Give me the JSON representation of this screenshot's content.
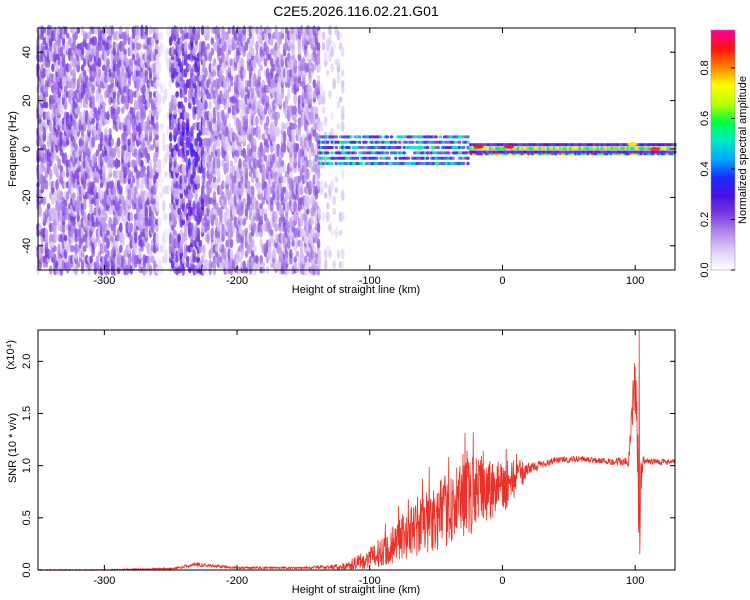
{
  "title": "C2E5.2026.116.02.21.G01",
  "colors": {
    "snr_line": "#e8322a",
    "spectro_bg": "#ffffff",
    "axis": "#000000",
    "colormap": [
      "#ffffff",
      "#e0d0f8",
      "#b48ae8",
      "#7a3ee0",
      "#4a10e0",
      "#1a2cff",
      "#00a8ff",
      "#00e8c8",
      "#00ff40",
      "#b8ff00",
      "#ffff00",
      "#ff8000",
      "#ff1010",
      "#ff00a0"
    ]
  },
  "chart_data": [
    {
      "type": "heatmap",
      "name": "spectrogram",
      "xlabel": "Height of straight line (km)",
      "ylabel": "Frequency (Hz)",
      "xlim": [
        -350,
        130
      ],
      "ylim": [
        -50,
        50
      ],
      "x_ticks": [
        -300,
        -200,
        -100,
        0,
        100
      ],
      "y_ticks": [
        -40,
        -20,
        0,
        20,
        40
      ],
      "colorbar": {
        "label": "Normalized spectral amplitude",
        "range": [
          0.0,
          0.95
        ],
        "ticks": [
          0.0,
          0.2,
          0.4,
          0.6,
          0.8
        ]
      },
      "regions": [
        {
          "x": [
            -350,
            -260
          ],
          "freq_spread": 50,
          "amplitude": 0.18,
          "density": 0.62
        },
        {
          "x": [
            -260,
            -250
          ],
          "freq_spread": 50,
          "amplitude": 0.06,
          "density": 0.25
        },
        {
          "x": [
            -250,
            -225
          ],
          "freq_spread": 50,
          "amplitude": 0.22,
          "density": 0.6,
          "core_amplitude": 0.3,
          "core_spread": 8
        },
        {
          "x": [
            -225,
            -138
          ],
          "freq_spread": 50,
          "amplitude": 0.16,
          "density": 0.58
        },
        {
          "x": [
            -138,
            -120
          ],
          "freq_spread": 50,
          "amplitude": 0.08,
          "density": 0.18
        },
        {
          "x": [
            -138,
            -25
          ],
          "freq_spread": 6,
          "amplitude": 0.45,
          "density": 0.9
        },
        {
          "x": [
            -25,
            130
          ],
          "freq_spread": 2,
          "amplitude": 0.65,
          "density": 1.0
        }
      ],
      "hot_spots": [
        {
          "x": -18,
          "f": 1,
          "amplitude": 0.88
        },
        {
          "x": 5,
          "f": 1,
          "amplitude": 0.9
        },
        {
          "x": 98,
          "f": 2,
          "amplitude": 0.75
        },
        {
          "x": 115,
          "f": 0,
          "amplitude": 0.85
        }
      ]
    },
    {
      "type": "line",
      "name": "snr",
      "xlabel": "Height of straight line (km)",
      "ylabel": "SNR (10 * v/v)",
      "y_multiplier": "(x10⁴)",
      "xlim": [
        -350,
        130
      ],
      "ylim": [
        0,
        2.3
      ],
      "x_ticks": [
        -300,
        -200,
        -100,
        0,
        100
      ],
      "y_ticks": [
        0.0,
        0.5,
        1.0,
        1.5,
        2.0
      ],
      "y_tick_labels": [
        "0.0",
        "0.5",
        "1.0",
        "1.5",
        "2.0"
      ],
      "series": [
        {
          "x": [
            -350,
            -300,
            -250,
            -230,
            -200,
            -150,
            -120,
            -100,
            -80,
            -60,
            -40,
            -20,
            -5,
            10,
            20,
            40,
            60,
            80,
            95,
            100,
            103,
            106,
            110,
            130
          ],
          "y": [
            0.0,
            0.0,
            0.01,
            0.05,
            0.02,
            0.02,
            0.03,
            0.1,
            0.25,
            0.4,
            0.55,
            0.7,
            0.75,
            0.85,
            0.97,
            1.05,
            1.06,
            1.04,
            1.03,
            1.8,
            0.5,
            1.05,
            1.04,
            1.03
          ],
          "noise_amplitude": [
            0.005,
            0.005,
            0.01,
            0.02,
            0.01,
            0.01,
            0.03,
            0.1,
            0.2,
            0.3,
            0.35,
            0.4,
            0.3,
            0.2,
            0.05,
            0.03,
            0.03,
            0.03,
            0.05,
            0.4,
            0.3,
            0.04,
            0.03,
            0.03
          ],
          "spikes": [
            {
              "x": -22,
              "y": 1.32
            },
            {
              "x": 100,
              "y": 1.95
            },
            {
              "x": 103,
              "y": 2.3
            },
            {
              "x": 103.5,
              "y": 0.15
            }
          ]
        }
      ]
    }
  ]
}
